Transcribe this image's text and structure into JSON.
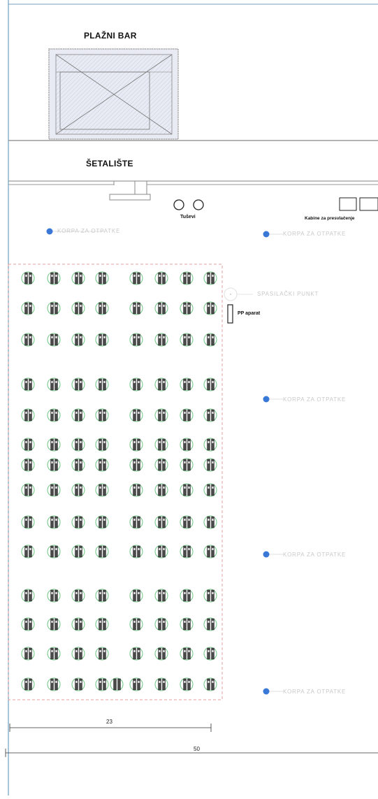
{
  "labels": {
    "bar": "PLAŽNI BAR",
    "promenade": "ŠETALIŠTE",
    "showers": "Tuševi",
    "changing_cabins": "Kabine za presvlačenje",
    "fire_extinguisher": "PP aparat",
    "lifeguard_post": "SPASILAČKI PUNKT",
    "trash_bin": "KORPA ZA OTPATKE"
  },
  "dimensions": {
    "beach_width": "23",
    "total_width": "50"
  },
  "layout_counts": {
    "umbrella_rows": 15,
    "sets_per_row_per_block": 4,
    "blocks": 2
  },
  "colors": {
    "bin_marker": "#3a78d8",
    "umbrella_ring": "#77c98a",
    "dashed_border": "#e7a0a0",
    "frame": "#6f9fc2"
  },
  "icons": [
    "bar-structure",
    "shower-icon",
    "changing-cabin-icon",
    "fire-extinguisher-icon",
    "trash-bin-marker",
    "umbrella-set-icon"
  ]
}
